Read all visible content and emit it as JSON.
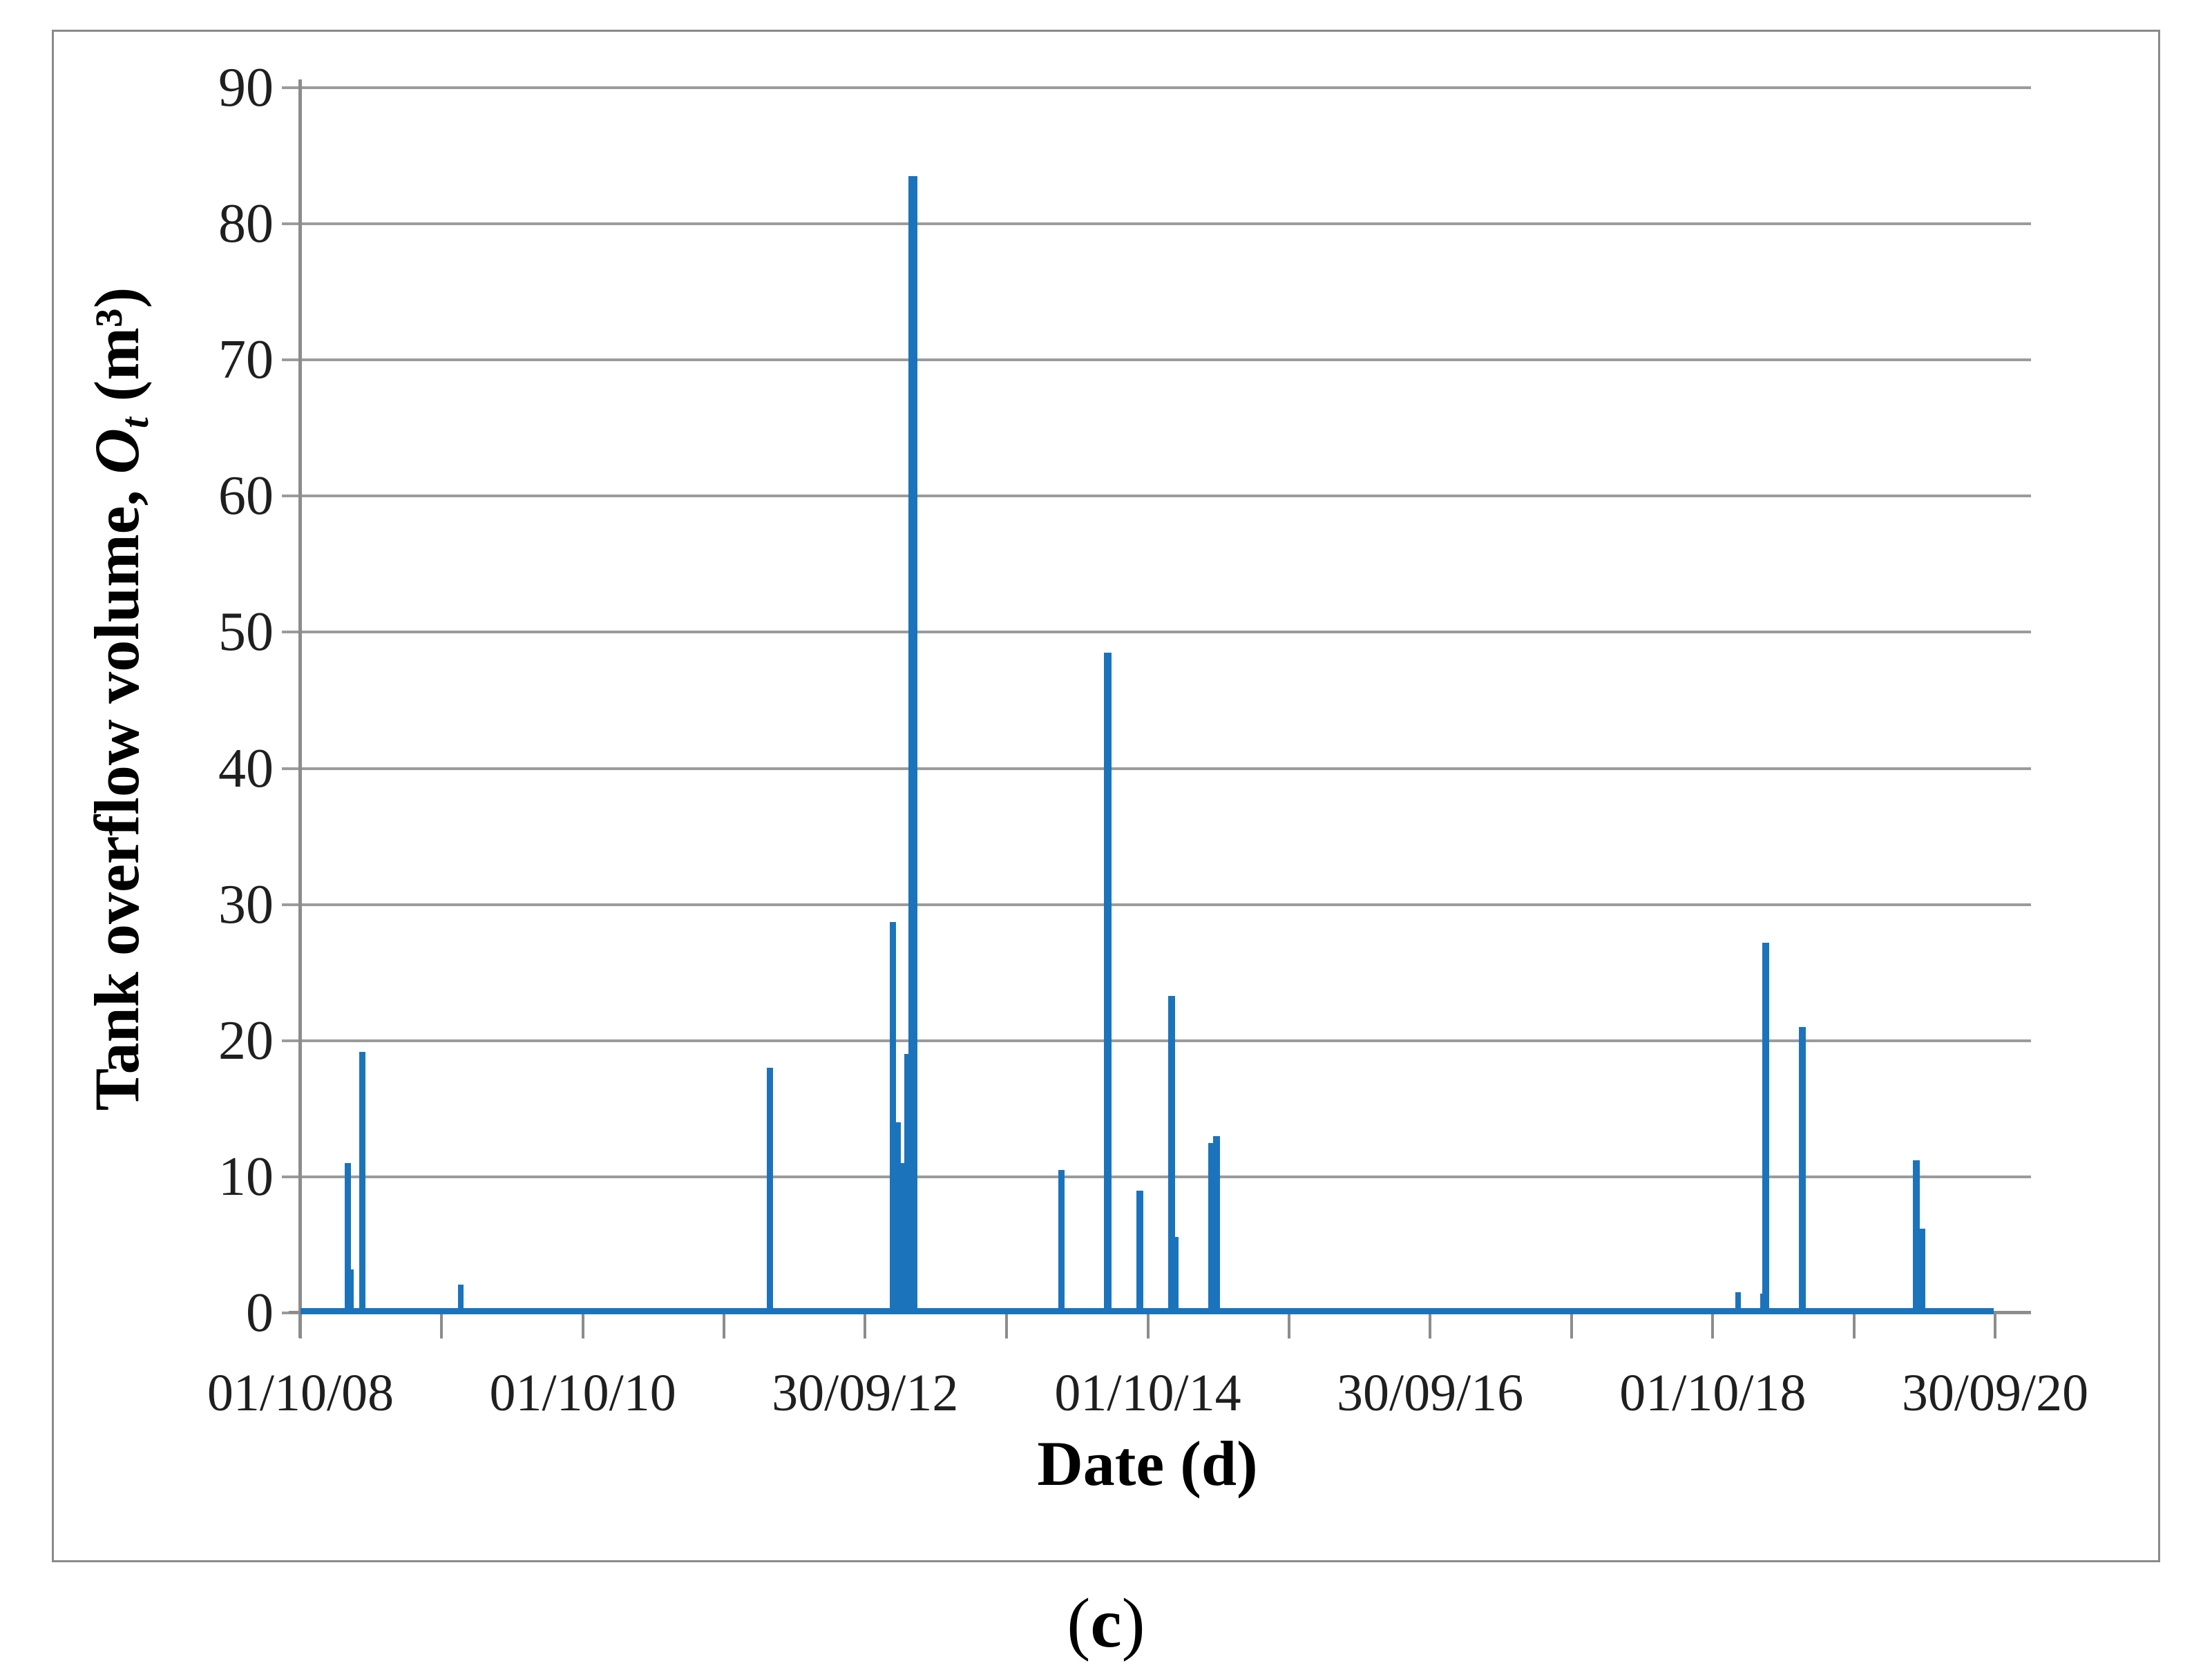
{
  "figure": {
    "caption": {
      "open": "(",
      "letter": "c",
      "close": ")"
    }
  },
  "chart_data": {
    "type": "bar",
    "title": "",
    "xlabel": "Date (d)",
    "ylabel": {
      "text": "Tank overflow volume, ",
      "symbol": "O",
      "symbol_sub": "t",
      "unit": " (m³)"
    },
    "ylim": [
      0,
      90
    ],
    "ytick_step": 10,
    "grid": true,
    "legend": "none",
    "bar_color": "#1b74bb",
    "grid_color": "#9b9b9b",
    "axis_color": "#8c8c8c",
    "x_range": [
      "2008-10-01",
      "2020-09-30"
    ],
    "xticks": [
      {
        "date": "2008-10-01",
        "label": "01/10/08"
      },
      {
        "date": "2009-10-01",
        "label": ""
      },
      {
        "date": "2010-10-01",
        "label": "01/10/10"
      },
      {
        "date": "2011-10-01",
        "label": ""
      },
      {
        "date": "2012-09-30",
        "label": "30/09/12"
      },
      {
        "date": "2013-10-01",
        "label": ""
      },
      {
        "date": "2014-10-01",
        "label": "01/10/14"
      },
      {
        "date": "2015-10-01",
        "label": ""
      },
      {
        "date": "2016-09-30",
        "label": "30/09/16"
      },
      {
        "date": "2017-10-01",
        "label": ""
      },
      {
        "date": "2018-10-01",
        "label": "01/10/18"
      },
      {
        "date": "2019-10-01",
        "label": ""
      },
      {
        "date": "2020-09-30",
        "label": "30/09/20"
      }
    ],
    "points": [
      {
        "date": "2009-02-01",
        "value": 11.0,
        "w": 9
      },
      {
        "date": "2009-02-09",
        "value": 3.2,
        "w": 8
      },
      {
        "date": "2009-03-10",
        "value": 19.2,
        "w": 9
      },
      {
        "date": "2009-11-20",
        "value": 2.1,
        "w": 8
      },
      {
        "date": "2012-01-28",
        "value": 18.0,
        "w": 9
      },
      {
        "date": "2012-12-10",
        "value": 28.7,
        "w": 9
      },
      {
        "date": "2012-12-24",
        "value": 14.0,
        "w": 9
      },
      {
        "date": "2013-01-02",
        "value": 11.0,
        "w": 20
      },
      {
        "date": "2013-01-18",
        "value": 19.0,
        "w": 9
      },
      {
        "date": "2013-02-01",
        "value": 83.5,
        "w": 13
      },
      {
        "date": "2014-02-20",
        "value": 10.5,
        "w": 9
      },
      {
        "date": "2014-06-20",
        "value": 48.5,
        "w": 11
      },
      {
        "date": "2014-09-10",
        "value": 9.0,
        "w": 10
      },
      {
        "date": "2014-12-01",
        "value": 23.3,
        "w": 10
      },
      {
        "date": "2014-12-11",
        "value": 5.6,
        "w": 9
      },
      {
        "date": "2015-03-15",
        "value": 12.5,
        "w": 10
      },
      {
        "date": "2015-03-28",
        "value": 13.0,
        "w": 10
      },
      {
        "date": "2018-12-05",
        "value": 1.5,
        "w": 8
      },
      {
        "date": "2019-02-08",
        "value": 1.4,
        "w": 9
      },
      {
        "date": "2019-02-15",
        "value": 27.2,
        "w": 10
      },
      {
        "date": "2019-05-20",
        "value": 21.0,
        "w": 10
      },
      {
        "date": "2020-03-10",
        "value": 11.2,
        "w": 10
      },
      {
        "date": "2020-03-24",
        "value": 6.2,
        "w": 10
      }
    ]
  }
}
